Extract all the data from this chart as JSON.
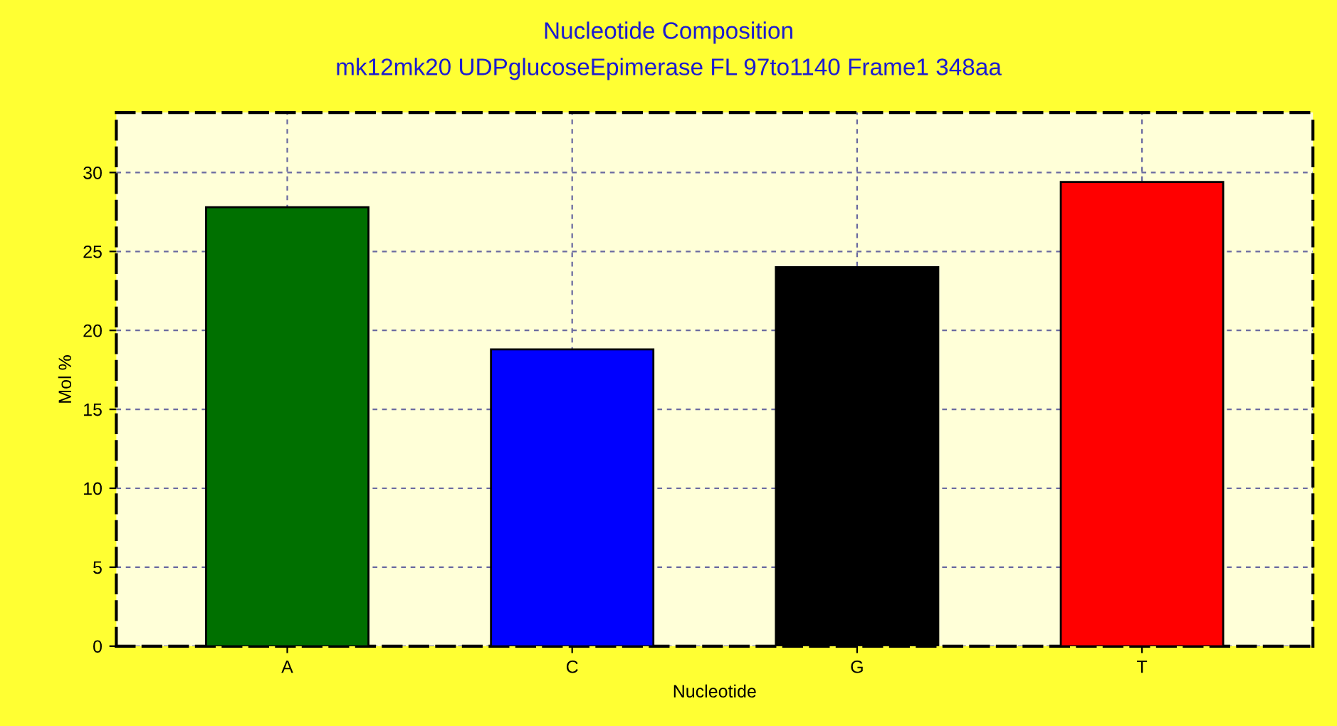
{
  "chart_data": {
    "type": "bar",
    "title": "Nucleotide Composition",
    "subtitle": "mk12mk20 UDPglucoseEpimerase FL 97to1140 Frame1 348aa",
    "xlabel": "Nucleotide",
    "ylabel": "Mol %",
    "categories": [
      "A",
      "C",
      "G",
      "T"
    ],
    "values": [
      27.8,
      18.8,
      24.0,
      29.4
    ],
    "colors": [
      "#007000",
      "#0000ff",
      "#000000",
      "#ff0000"
    ],
    "ylim": [
      0,
      33.8
    ],
    "yticks": [
      0,
      5,
      10,
      15,
      20,
      25,
      30
    ],
    "grid": true,
    "legend": false
  }
}
